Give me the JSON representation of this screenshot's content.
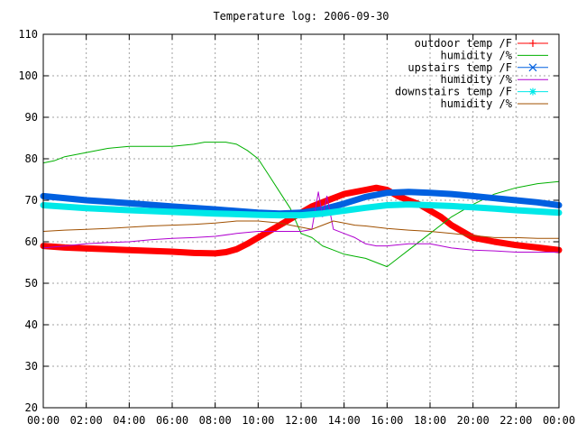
{
  "chart_data": {
    "type": "line",
    "title": "Temperature log: 2006-09-30",
    "xlabel": "",
    "ylabel": "",
    "xlim": [
      0,
      24
    ],
    "ylim": [
      20,
      110
    ],
    "grid": true,
    "legend_position": "top-right",
    "x_ticks": [
      "00:00",
      "02:00",
      "04:00",
      "06:00",
      "08:00",
      "10:00",
      "12:00",
      "14:00",
      "16:00",
      "18:00",
      "20:00",
      "22:00",
      "00:00"
    ],
    "y_ticks": [
      "20",
      "30",
      "40",
      "50",
      "60",
      "70",
      "80",
      "90",
      "100",
      "110"
    ],
    "series": [
      {
        "name": "outdoor temp /F",
        "color": "#ff0000",
        "marker": "plus",
        "width": 7,
        "x": [
          0,
          1,
          2,
          3,
          4,
          5,
          6,
          7,
          8,
          8.5,
          9,
          9.5,
          10,
          10.5,
          11,
          11.5,
          12,
          12.5,
          13,
          13.5,
          14,
          14.5,
          15,
          15.5,
          16,
          16.5,
          17,
          17.5,
          18,
          18.5,
          19,
          19.5,
          20,
          20.5,
          21,
          22,
          23,
          24
        ],
        "y": [
          59,
          58.6,
          58.4,
          58.2,
          58,
          57.8,
          57.6,
          57.3,
          57.2,
          57.5,
          58.2,
          59.5,
          61,
          62.5,
          64,
          65.5,
          67,
          68.5,
          69.5,
          70.5,
          71.5,
          72,
          72.5,
          73,
          72.5,
          71,
          70,
          69,
          67.5,
          66,
          64,
          62.5,
          61,
          60.5,
          60,
          59.2,
          58.6,
          58
        ]
      },
      {
        "name": "humidity /%",
        "color": "#00b000",
        "marker": "none",
        "width": 1,
        "x": [
          0,
          0.5,
          1,
          2,
          3,
          4,
          5,
          6,
          7,
          7.5,
          8,
          8.5,
          9,
          9.5,
          10,
          10.5,
          11,
          11.5,
          12,
          12.5,
          13,
          13.5,
          14,
          14.5,
          15,
          15.5,
          16,
          16.5,
          17,
          18,
          19,
          20,
          21,
          22,
          23,
          24
        ],
        "y": [
          79,
          79.5,
          80.5,
          81.5,
          82.5,
          83,
          83,
          83,
          83.5,
          84,
          84,
          84,
          83.5,
          82,
          80,
          76,
          72,
          68,
          62,
          61,
          59,
          58,
          57,
          56.5,
          56,
          55,
          54,
          56,
          58,
          62,
          66,
          69,
          71.5,
          73,
          74,
          74.5
        ]
      },
      {
        "name": "upstairs temp /F",
        "color": "#0060e0",
        "marker": "cross",
        "width": 7,
        "x": [
          0,
          2,
          4,
          6,
          8,
          10,
          11,
          12,
          13,
          14,
          15,
          16,
          17,
          18,
          19,
          20,
          21,
          22,
          23,
          24
        ],
        "y": [
          71,
          70,
          69.3,
          68.5,
          67.8,
          67,
          66.8,
          67,
          67.8,
          69.2,
          70.8,
          71.8,
          72,
          71.8,
          71.5,
          71,
          70.5,
          70,
          69.5,
          68.8
        ]
      },
      {
        "name": "humidity /%",
        "color": "#b000d0",
        "marker": "none",
        "width": 1,
        "x": [
          0,
          1,
          2,
          3,
          4,
          5,
          6,
          7,
          8,
          9,
          10,
          11,
          12,
          12.5,
          12.8,
          13,
          13.2,
          13.5,
          14,
          14.5,
          15,
          15.5,
          16,
          17,
          18,
          19,
          20,
          21,
          22,
          23,
          24
        ],
        "y": [
          58.5,
          59,
          59.5,
          59.8,
          60,
          60.5,
          60.8,
          61,
          61.3,
          62,
          62.5,
          62.5,
          62.5,
          63,
          72,
          66,
          71,
          63,
          62,
          61,
          59.5,
          59,
          59,
          59.5,
          59.5,
          58.5,
          58,
          57.8,
          57.5,
          57.5,
          57.5
        ]
      },
      {
        "name": "downstairs temp /F",
        "color": "#00e8e8",
        "marker": "star",
        "width": 7,
        "x": [
          0,
          2,
          4,
          6,
          8,
          10,
          11,
          12,
          13,
          14,
          15,
          16,
          17,
          18,
          19,
          20,
          21,
          22,
          23,
          24
        ],
        "y": [
          68.8,
          68.1,
          67.6,
          67.2,
          66.8,
          66.5,
          66.4,
          66.4,
          66.8,
          67.5,
          68.2,
          68.8,
          69,
          68.8,
          68.6,
          68.3,
          68,
          67.6,
          67.3,
          67
        ]
      },
      {
        "name": "humidity /%",
        "color": "#a05000",
        "marker": "none",
        "width": 1,
        "x": [
          0,
          1,
          2,
          3,
          4,
          5,
          6,
          7,
          8,
          9,
          10,
          11,
          12,
          12.5,
          13,
          13.5,
          14,
          14.5,
          15,
          16,
          17,
          18,
          19,
          20,
          21,
          22,
          23,
          24
        ],
        "y": [
          62.5,
          62.8,
          63,
          63.2,
          63.5,
          63.8,
          64,
          64.2,
          64.5,
          65,
          65,
          64.5,
          63.5,
          63,
          64,
          65,
          64.5,
          64,
          63.8,
          63.2,
          62.8,
          62.5,
          62,
          61.5,
          61,
          61,
          60.8,
          60.8
        ]
      }
    ]
  }
}
